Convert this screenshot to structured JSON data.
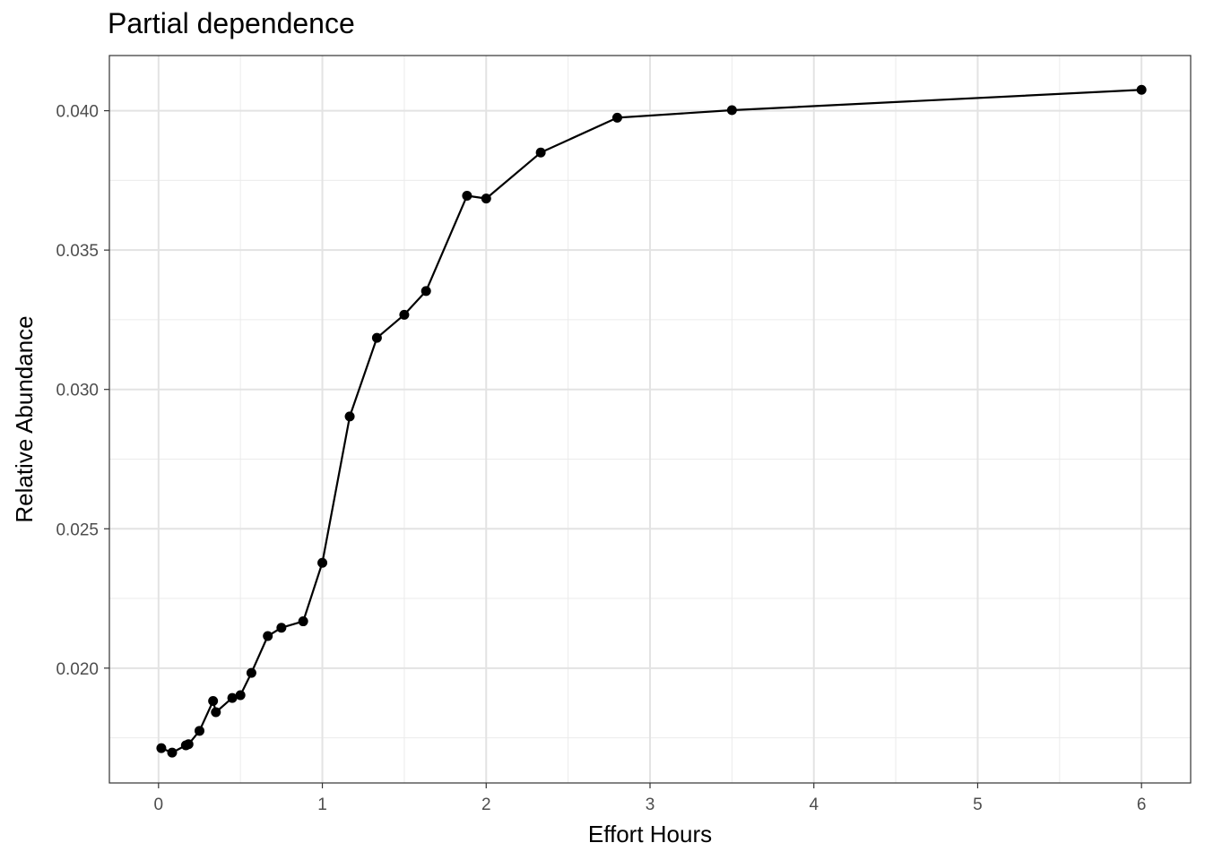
{
  "chart_data": {
    "type": "line",
    "title": "Partial dependence",
    "xlabel": "Effort Hours",
    "ylabel": "Relative Abundance",
    "xlim": [
      -0.3,
      6.3
    ],
    "ylim": [
      0.01588,
      0.04198
    ],
    "x_ticks": [
      0,
      1,
      2,
      3,
      4,
      5,
      6
    ],
    "x_tick_labels": [
      "0",
      "1",
      "2",
      "3",
      "4",
      "5",
      "6"
    ],
    "y_ticks": [
      0.02,
      0.025,
      0.03,
      0.035,
      0.04
    ],
    "y_tick_labels": [
      "0.020",
      "0.025",
      "0.030",
      "0.035",
      "0.040"
    ],
    "grid": true,
    "markers": true,
    "series": [
      {
        "x": [
          0.017,
          0.083,
          0.167,
          0.183,
          0.25,
          0.333,
          0.35,
          0.45,
          0.5,
          0.567,
          0.667,
          0.75,
          0.883,
          1.0,
          1.167,
          1.333,
          1.5,
          1.633,
          1.883,
          2.0,
          2.333,
          2.8,
          3.5,
          6.0
        ],
        "values": [
          0.01713,
          0.01697,
          0.01723,
          0.01727,
          0.01775,
          0.01882,
          0.01842,
          0.01893,
          0.01903,
          0.01983,
          0.02115,
          0.02145,
          0.02168,
          0.02378,
          0.02903,
          0.03185,
          0.03268,
          0.03353,
          0.03695,
          0.03685,
          0.0385,
          0.03975,
          0.04002,
          0.04075
        ],
        "color": "#000000"
      }
    ]
  }
}
